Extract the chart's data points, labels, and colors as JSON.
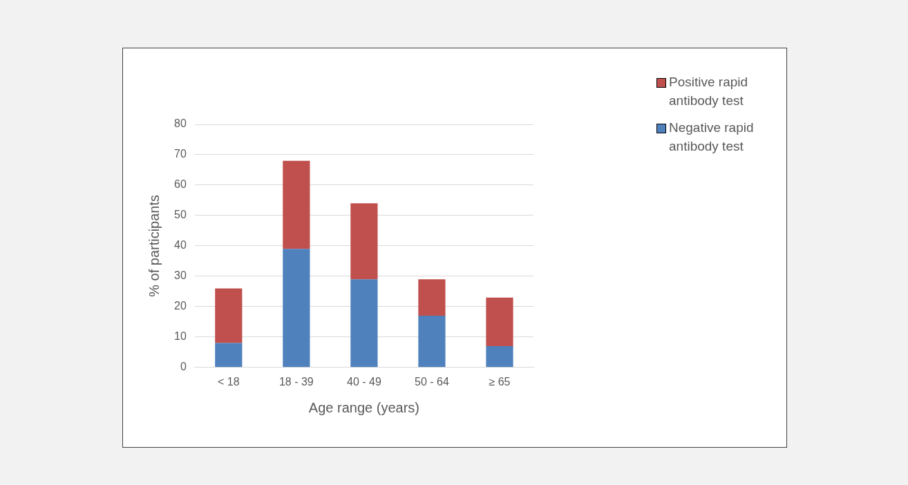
{
  "chart_data": {
    "type": "bar",
    "xlabel": "Age range (years)",
    "ylabel": "% of participants",
    "categories": [
      "< 18",
      "18 - 39",
      "40 - 49",
      "50 - 64",
      "≥ 65"
    ],
    "stacked": true,
    "series": [
      {
        "name": "Negative rapid antibody test",
        "color": "#4f81bd",
        "values": [
          8,
          39,
          29,
          17,
          7
        ]
      },
      {
        "name": "Positive rapid antibody test",
        "color": "#c0504d",
        "values": [
          18,
          29,
          25,
          12,
          16
        ]
      }
    ],
    "ylim": [
      0,
      80
    ],
    "yticks": [
      0,
      10,
      20,
      30,
      40,
      50,
      60,
      70,
      80
    ],
    "grid": "y",
    "legend": "top right"
  }
}
